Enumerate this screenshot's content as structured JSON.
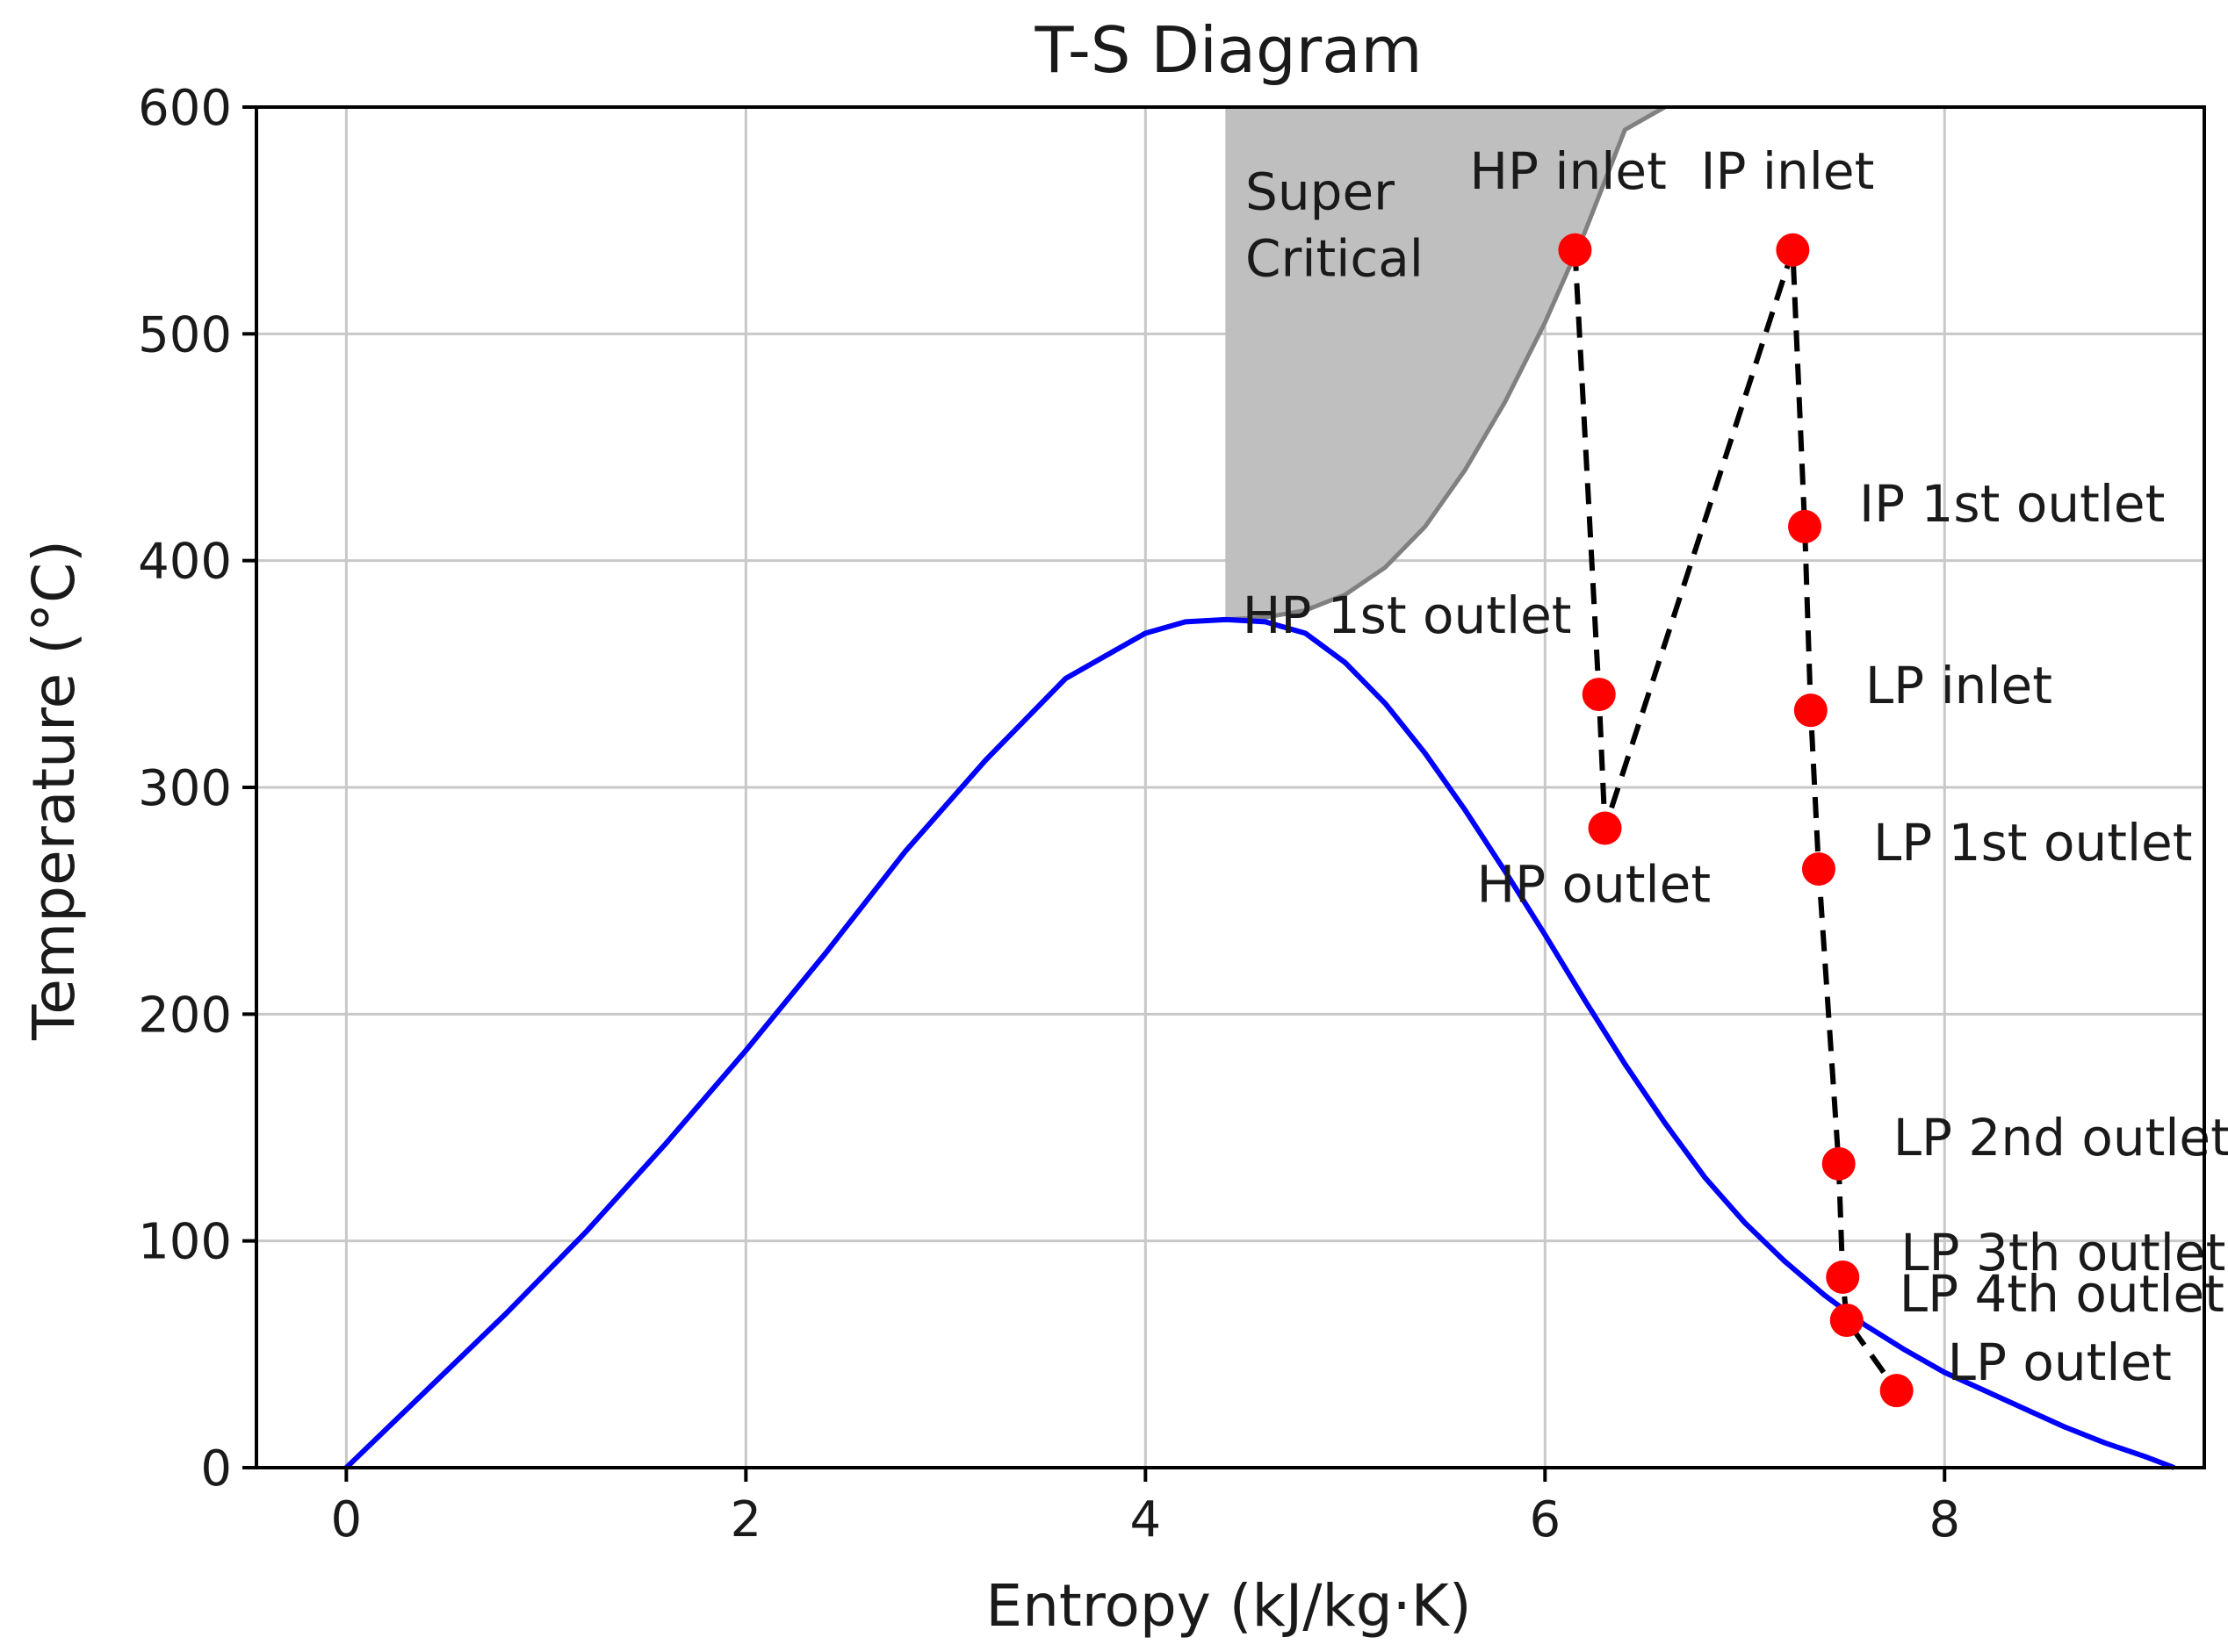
{
  "chart_data": {
    "type": "scatter",
    "title": "T-S Diagram",
    "xlabel": "Entropy (kJ/kg·K)",
    "ylabel": "Temperature (°C)",
    "xlim": [
      -0.45,
      9.3
    ],
    "ylim": [
      0,
      600
    ],
    "xticks": [
      0,
      2,
      4,
      6,
      8
    ],
    "yticks": [
      0,
      100,
      200,
      300,
      400,
      500,
      600
    ],
    "grid": true,
    "colors": {
      "saturation_curve": "#0000ff",
      "points": "#ff0000",
      "process_line": "#000000",
      "region_fill": "#bfbfbf",
      "region_edge": "#808080",
      "grid": "#c8c8c8"
    },
    "saturation_dome": {
      "name": "saturation curve",
      "x": [
        0,
        0.4,
        0.8,
        1.2,
        1.6,
        2.0,
        2.4,
        2.8,
        3.2,
        3.6,
        4.0,
        4.2,
        4.4,
        4.6,
        4.8,
        5.0,
        5.2,
        5.4,
        5.6,
        5.8,
        6.0,
        6.2,
        6.4,
        6.6,
        6.8,
        7.0,
        7.2,
        7.4,
        7.6,
        7.8,
        8.0,
        8.2,
        8.4,
        8.6,
        8.8,
        9.0,
        9.15
      ],
      "y": [
        0,
        34,
        68,
        104,
        143,
        184,
        227,
        272,
        312,
        348,
        368,
        373,
        374,
        373,
        368,
        355,
        337,
        315,
        290,
        263,
        235,
        206,
        178,
        152,
        128,
        108,
        91,
        76,
        63,
        52,
        42,
        34,
        26,
        18,
        11,
        5,
        0
      ]
    },
    "supercritical_region": {
      "label": "Super\nCritical",
      "x": [
        4.4,
        4.6,
        4.8,
        5.0,
        5.2,
        5.4,
        5.6,
        5.8,
        6.0,
        6.2,
        6.4,
        6.6
      ],
      "upper_boundary_y": [
        374,
        375,
        378,
        385,
        397,
        415,
        440,
        470,
        505,
        545,
        590,
        600
      ]
    },
    "points": [
      {
        "label": "HP inlet",
        "s": 6.15,
        "t": 537
      },
      {
        "label": "HP 1st outlet",
        "s": 6.27,
        "t": 341
      },
      {
        "label": "HP outlet",
        "s": 6.3,
        "t": 282
      },
      {
        "label": "IP inlet",
        "s": 7.24,
        "t": 537
      },
      {
        "label": "IP 1st outlet",
        "s": 7.3,
        "t": 415
      },
      {
        "label": "LP inlet",
        "s": 7.33,
        "t": 334
      },
      {
        "label": "LP 1st outlet",
        "s": 7.37,
        "t": 264
      },
      {
        "label": "LP 2nd outlet",
        "s": 7.47,
        "t": 134
      },
      {
        "label": "LP 3th outlet",
        "s": 7.49,
        "t": 84
      },
      {
        "label": "LP 4th outlet",
        "s": 7.51,
        "t": 65
      },
      {
        "label": "LP outlet",
        "s": 7.76,
        "t": 34
      }
    ],
    "process_path": [
      "HP inlet",
      "HP 1st outlet",
      "HP outlet",
      "IP inlet",
      "IP 1st outlet",
      "LP inlet",
      "LP 1st outlet",
      "LP 2nd outlet",
      "LP 3th outlet",
      "LP 4th outlet",
      "LP outlet"
    ]
  }
}
